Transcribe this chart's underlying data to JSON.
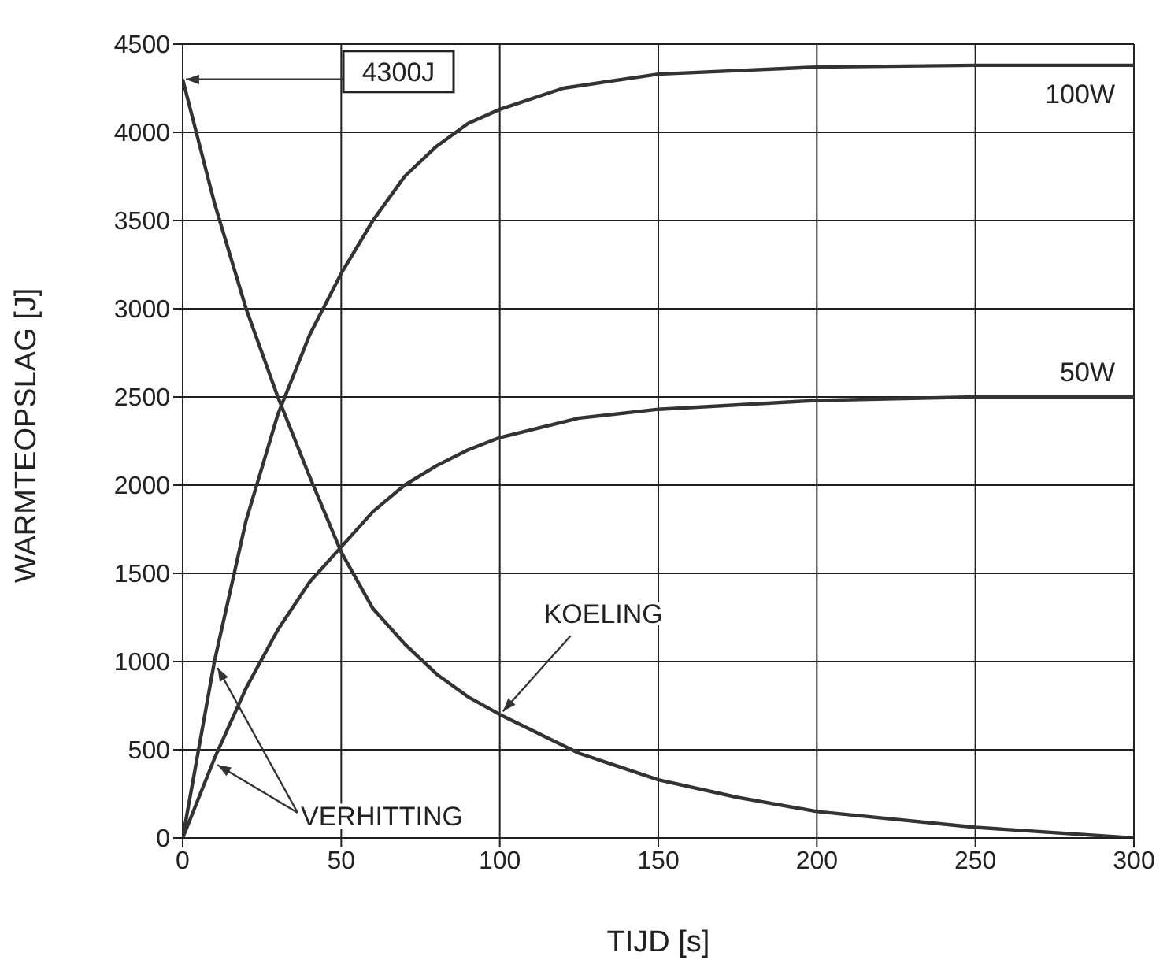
{
  "chart_data": {
    "type": "line",
    "xlabel": "TIJD [s]",
    "ylabel": "WARMTEOPSLAG [J]",
    "xlim": [
      0,
      300
    ],
    "ylim": [
      0,
      4500
    ],
    "xticks": [
      0,
      50,
      100,
      150,
      200,
      250,
      300
    ],
    "yticks": [
      0,
      500,
      1000,
      1500,
      2000,
      2500,
      3000,
      3500,
      4000,
      4500
    ],
    "grid": true,
    "marker": "none",
    "line_style": "solid",
    "series": [
      {
        "name": "100W",
        "color": "#333333",
        "x": [
          0,
          10,
          20,
          30,
          40,
          50,
          60,
          70,
          80,
          90,
          100,
          120,
          150,
          200,
          250,
          300
        ],
        "values": [
          0,
          1000,
          1800,
          2400,
          2850,
          3200,
          3500,
          3750,
          3920,
          4050,
          4130,
          4250,
          4330,
          4370,
          4380,
          4380
        ]
      },
      {
        "name": "50W",
        "color": "#333333",
        "x": [
          0,
          10,
          20,
          30,
          40,
          50,
          60,
          70,
          80,
          90,
          100,
          125,
          150,
          200,
          250,
          300
        ],
        "values": [
          0,
          450,
          850,
          1180,
          1450,
          1650,
          1850,
          2000,
          2110,
          2200,
          2270,
          2380,
          2430,
          2480,
          2500,
          2500
        ]
      },
      {
        "color": "#333333",
        "x": [
          0,
          10,
          20,
          30,
          40,
          50,
          60,
          70,
          80,
          90,
          100,
          125,
          150,
          175,
          200,
          250,
          300
        ],
        "values": [
          4300,
          3600,
          3000,
          2500,
          2050,
          1620,
          1300,
          1100,
          930,
          800,
          700,
          480,
          330,
          230,
          150,
          60,
          0
        ]
      }
    ],
    "annotations": [
      {
        "text": "4300J",
        "x": 0,
        "y": 4300
      },
      {
        "text": "KOELING",
        "x": 100,
        "y": 700
      },
      {
        "text": "VERHITTING",
        "x": 10,
        "y": 1000
      }
    ]
  }
}
